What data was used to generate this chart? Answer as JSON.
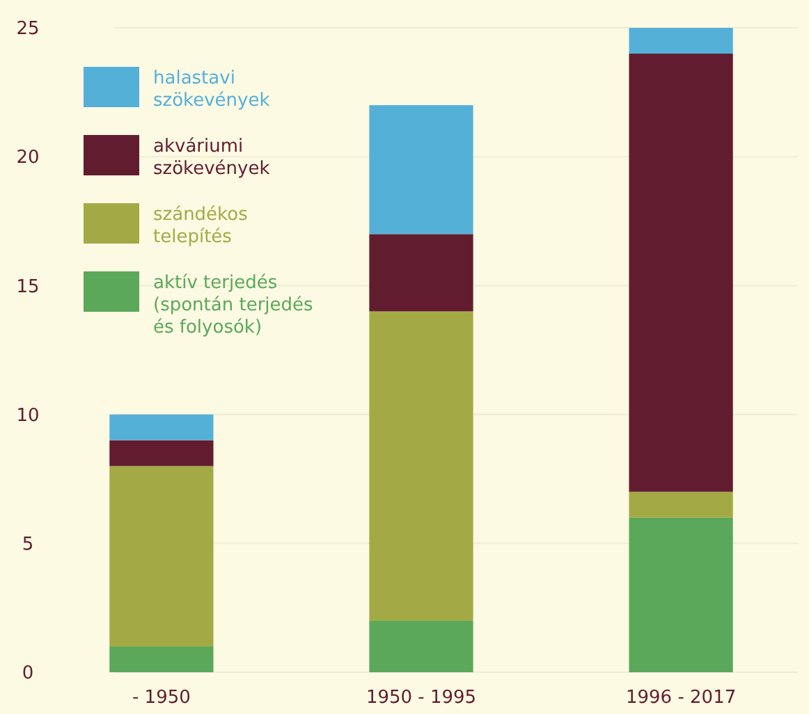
{
  "chart_data": {
    "type": "bar",
    "stacked": true,
    "categories": [
      "- 1950",
      "1950 - 1995",
      "1996 - 2017"
    ],
    "series": [
      {
        "name": "aktív terjedés (spontán terjedés és folyosók)",
        "color": "#5ba85a",
        "values": [
          1,
          2,
          6
        ]
      },
      {
        "name": "szándékos telepítés",
        "color": "#a3aa45",
        "values": [
          7,
          12,
          1
        ]
      },
      {
        "name": "akváriumi szökevények",
        "color": "#621c30",
        "values": [
          1,
          3,
          17
        ]
      },
      {
        "name": "halastavi szökevények",
        "color": "#55b0d8",
        "values": [
          1,
          5,
          1
        ]
      }
    ],
    "ylim": [
      0,
      25
    ],
    "yticks": [
      0,
      5,
      10,
      15,
      20,
      25
    ],
    "grid": "y",
    "legend": "top left"
  }
}
